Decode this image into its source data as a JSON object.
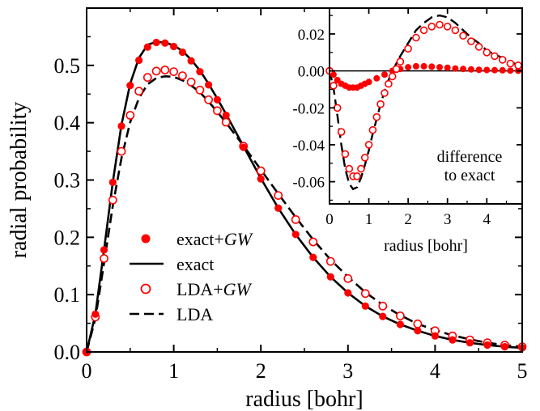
{
  "chart_data": [
    {
      "type": "line",
      "xlabel": "radius [bohr]",
      "ylabel": "radial probability",
      "xlim": [
        0,
        5
      ],
      "ylim": [
        0,
        0.6
      ],
      "x_ticks": [
        "0",
        "1",
        "2",
        "3",
        "4",
        "5"
      ],
      "y_ticks": [
        "0.0",
        "0.1",
        "0.2",
        "0.3",
        "0.4",
        "0.5"
      ],
      "grid": false,
      "legend_position": "lower-left",
      "legend": [
        {
          "label": "exact+",
          "label_italic": "GW",
          "marker": "filled-circle"
        },
        {
          "label": "exact",
          "marker": "solid-line"
        },
        {
          "label": "LDA+",
          "label_italic": "GW",
          "marker": "open-circle"
        },
        {
          "label": "LDA",
          "marker": "dashed-line"
        }
      ],
      "series": [
        {
          "name": "exact+GW",
          "style": "filled-circle",
          "color": "#ff0000",
          "x": [
            0,
            0.1,
            0.2,
            0.3,
            0.4,
            0.5,
            0.6,
            0.7,
            0.8,
            0.9,
            1.0,
            1.1,
            1.2,
            1.3,
            1.4,
            1.5,
            1.6,
            1.8,
            2.0,
            2.2,
            2.4,
            2.6,
            2.8,
            3.0,
            3.2,
            3.4,
            3.6,
            3.8,
            4.0,
            4.2,
            4.4,
            4.6,
            4.8,
            5.0
          ],
          "y": [
            0,
            0.066,
            0.178,
            0.296,
            0.394,
            0.465,
            0.509,
            0.532,
            0.54,
            0.539,
            0.533,
            0.523,
            0.508,
            0.489,
            0.466,
            0.44,
            0.413,
            0.357,
            0.302,
            0.251,
            0.205,
            0.165,
            0.131,
            0.103,
            0.08,
            0.062,
            0.048,
            0.037,
            0.028,
            0.021,
            0.016,
            0.012,
            0.009,
            0.007
          ]
        },
        {
          "name": "exact",
          "style": "solid",
          "color": "#000000",
          "x": [
            0,
            0.1,
            0.2,
            0.3,
            0.4,
            0.5,
            0.6,
            0.7,
            0.8,
            0.9,
            1.0,
            1.1,
            1.2,
            1.3,
            1.4,
            1.5,
            1.6,
            1.8,
            2.0,
            2.2,
            2.4,
            2.6,
            2.8,
            3.0,
            3.2,
            3.4,
            3.6,
            3.8,
            4.0,
            4.2,
            4.4,
            4.6,
            4.8,
            5.0
          ],
          "y": [
            0,
            0.066,
            0.178,
            0.296,
            0.396,
            0.468,
            0.513,
            0.536,
            0.541,
            0.54,
            0.535,
            0.525,
            0.51,
            0.491,
            0.468,
            0.442,
            0.415,
            0.359,
            0.303,
            0.251,
            0.205,
            0.165,
            0.131,
            0.103,
            0.08,
            0.062,
            0.048,
            0.037,
            0.028,
            0.021,
            0.016,
            0.012,
            0.009,
            0.007
          ]
        },
        {
          "name": "LDA+GW",
          "style": "open-circle",
          "color": "#ff0000",
          "x": [
            0,
            0.1,
            0.2,
            0.3,
            0.4,
            0.5,
            0.6,
            0.7,
            0.8,
            0.9,
            1.0,
            1.1,
            1.2,
            1.3,
            1.4,
            1.5,
            1.6,
            1.8,
            2.0,
            2.2,
            2.4,
            2.6,
            2.8,
            3.0,
            3.2,
            3.4,
            3.6,
            3.8,
            4.0,
            4.2,
            4.4,
            4.6,
            4.8,
            5.0
          ],
          "y": [
            0,
            0.061,
            0.163,
            0.265,
            0.35,
            0.413,
            0.455,
            0.479,
            0.49,
            0.492,
            0.489,
            0.482,
            0.471,
            0.457,
            0.44,
            0.421,
            0.401,
            0.359,
            0.316,
            0.273,
            0.231,
            0.192,
            0.158,
            0.128,
            0.102,
            0.08,
            0.063,
            0.049,
            0.037,
            0.028,
            0.021,
            0.016,
            0.012,
            0.009
          ]
        },
        {
          "name": "LDA",
          "style": "dashed",
          "color": "#000000",
          "x": [
            0,
            0.1,
            0.2,
            0.3,
            0.4,
            0.5,
            0.6,
            0.7,
            0.8,
            0.9,
            1.0,
            1.1,
            1.2,
            1.3,
            1.4,
            1.5,
            1.6,
            1.8,
            2.0,
            2.2,
            2.4,
            2.6,
            2.8,
            3.0,
            3.2,
            3.4,
            3.6,
            3.8,
            4.0,
            4.2,
            4.4,
            4.6,
            4.8,
            5.0
          ],
          "y": [
            0,
            0.058,
            0.155,
            0.255,
            0.338,
            0.401,
            0.443,
            0.467,
            0.478,
            0.481,
            0.48,
            0.474,
            0.465,
            0.453,
            0.437,
            0.419,
            0.4,
            0.36,
            0.318,
            0.276,
            0.235,
            0.196,
            0.161,
            0.131,
            0.104,
            0.082,
            0.064,
            0.049,
            0.038,
            0.029,
            0.022,
            0.016,
            0.012,
            0.009
          ]
        }
      ]
    },
    {
      "type": "line",
      "xlabel": "radius [bohr]",
      "ylabel": "",
      "xlim": [
        0,
        4.9
      ],
      "ylim": [
        -0.072,
        0.034
      ],
      "x_ticks": [
        "0",
        "1",
        "2",
        "3",
        "4"
      ],
      "y_ticks": [
        "0.02",
        "0.00",
        "-0.02",
        "-0.04",
        "-0.06"
      ],
      "zero_line": true,
      "annotation": [
        "difference",
        "to exact"
      ],
      "series": [
        {
          "name": "exact+GW",
          "style": "filled-circle",
          "color": "#ff0000",
          "x": [
            0,
            0.1,
            0.2,
            0.3,
            0.4,
            0.5,
            0.6,
            0.7,
            0.8,
            0.9,
            1.0,
            1.2,
            1.4,
            1.6,
            1.8,
            2.0,
            2.2,
            2.4,
            2.6,
            2.8,
            3.0,
            3.2,
            3.4,
            3.6,
            3.8,
            4.0,
            4.2,
            4.4,
            4.6,
            4.8
          ],
          "y": [
            0,
            -0.002,
            -0.005,
            -0.007,
            -0.008,
            -0.009,
            -0.009,
            -0.009,
            -0.008,
            -0.007,
            -0.006,
            -0.004,
            -0.002,
            0.0,
            0.001,
            0.002,
            0.0025,
            0.0025,
            0.0023,
            0.002,
            0.0017,
            0.0013,
            0.001,
            0.0008,
            0.0006,
            0.0005,
            0.0004,
            0.0003,
            0.0002,
            0.0001
          ]
        },
        {
          "name": "LDA+GW",
          "style": "open-circle",
          "color": "#ff0000",
          "x": [
            0,
            0.1,
            0.2,
            0.3,
            0.4,
            0.5,
            0.6,
            0.7,
            0.8,
            0.9,
            1.0,
            1.1,
            1.2,
            1.3,
            1.4,
            1.5,
            1.6,
            1.7,
            1.8,
            2.0,
            2.2,
            2.4,
            2.6,
            2.8,
            3.0,
            3.2,
            3.4,
            3.6,
            3.8,
            4.0,
            4.2,
            4.4,
            4.6,
            4.8
          ],
          "y": [
            0,
            -0.008,
            -0.02,
            -0.033,
            -0.045,
            -0.053,
            -0.057,
            -0.057,
            -0.053,
            -0.047,
            -0.04,
            -0.032,
            -0.025,
            -0.018,
            -0.012,
            -0.007,
            -0.003,
            0.001,
            0.005,
            0.012,
            0.018,
            0.022,
            0.024,
            0.025,
            0.024,
            0.022,
            0.019,
            0.016,
            0.013,
            0.01,
            0.008,
            0.006,
            0.004,
            0.003
          ]
        },
        {
          "name": "LDA",
          "style": "dashed",
          "color": "#000000",
          "x": [
            0,
            0.1,
            0.2,
            0.3,
            0.4,
            0.5,
            0.6,
            0.7,
            0.8,
            0.9,
            1.0,
            1.1,
            1.2,
            1.3,
            1.4,
            1.5,
            1.6,
            1.7,
            1.8,
            2.0,
            2.2,
            2.4,
            2.6,
            2.8,
            3.0,
            3.2,
            3.4,
            3.6,
            3.8,
            4.0,
            4.2,
            4.4,
            4.6,
            4.8
          ],
          "y": [
            0,
            -0.009,
            -0.024,
            -0.04,
            -0.053,
            -0.061,
            -0.064,
            -0.063,
            -0.058,
            -0.051,
            -0.043,
            -0.034,
            -0.026,
            -0.018,
            -0.011,
            -0.005,
            0.0,
            0.004,
            0.008,
            0.015,
            0.022,
            0.026,
            0.029,
            0.03,
            0.029,
            0.026,
            0.022,
            0.018,
            0.015,
            0.011,
            0.009,
            0.007,
            0.005,
            0.003
          ]
        }
      ]
    }
  ]
}
